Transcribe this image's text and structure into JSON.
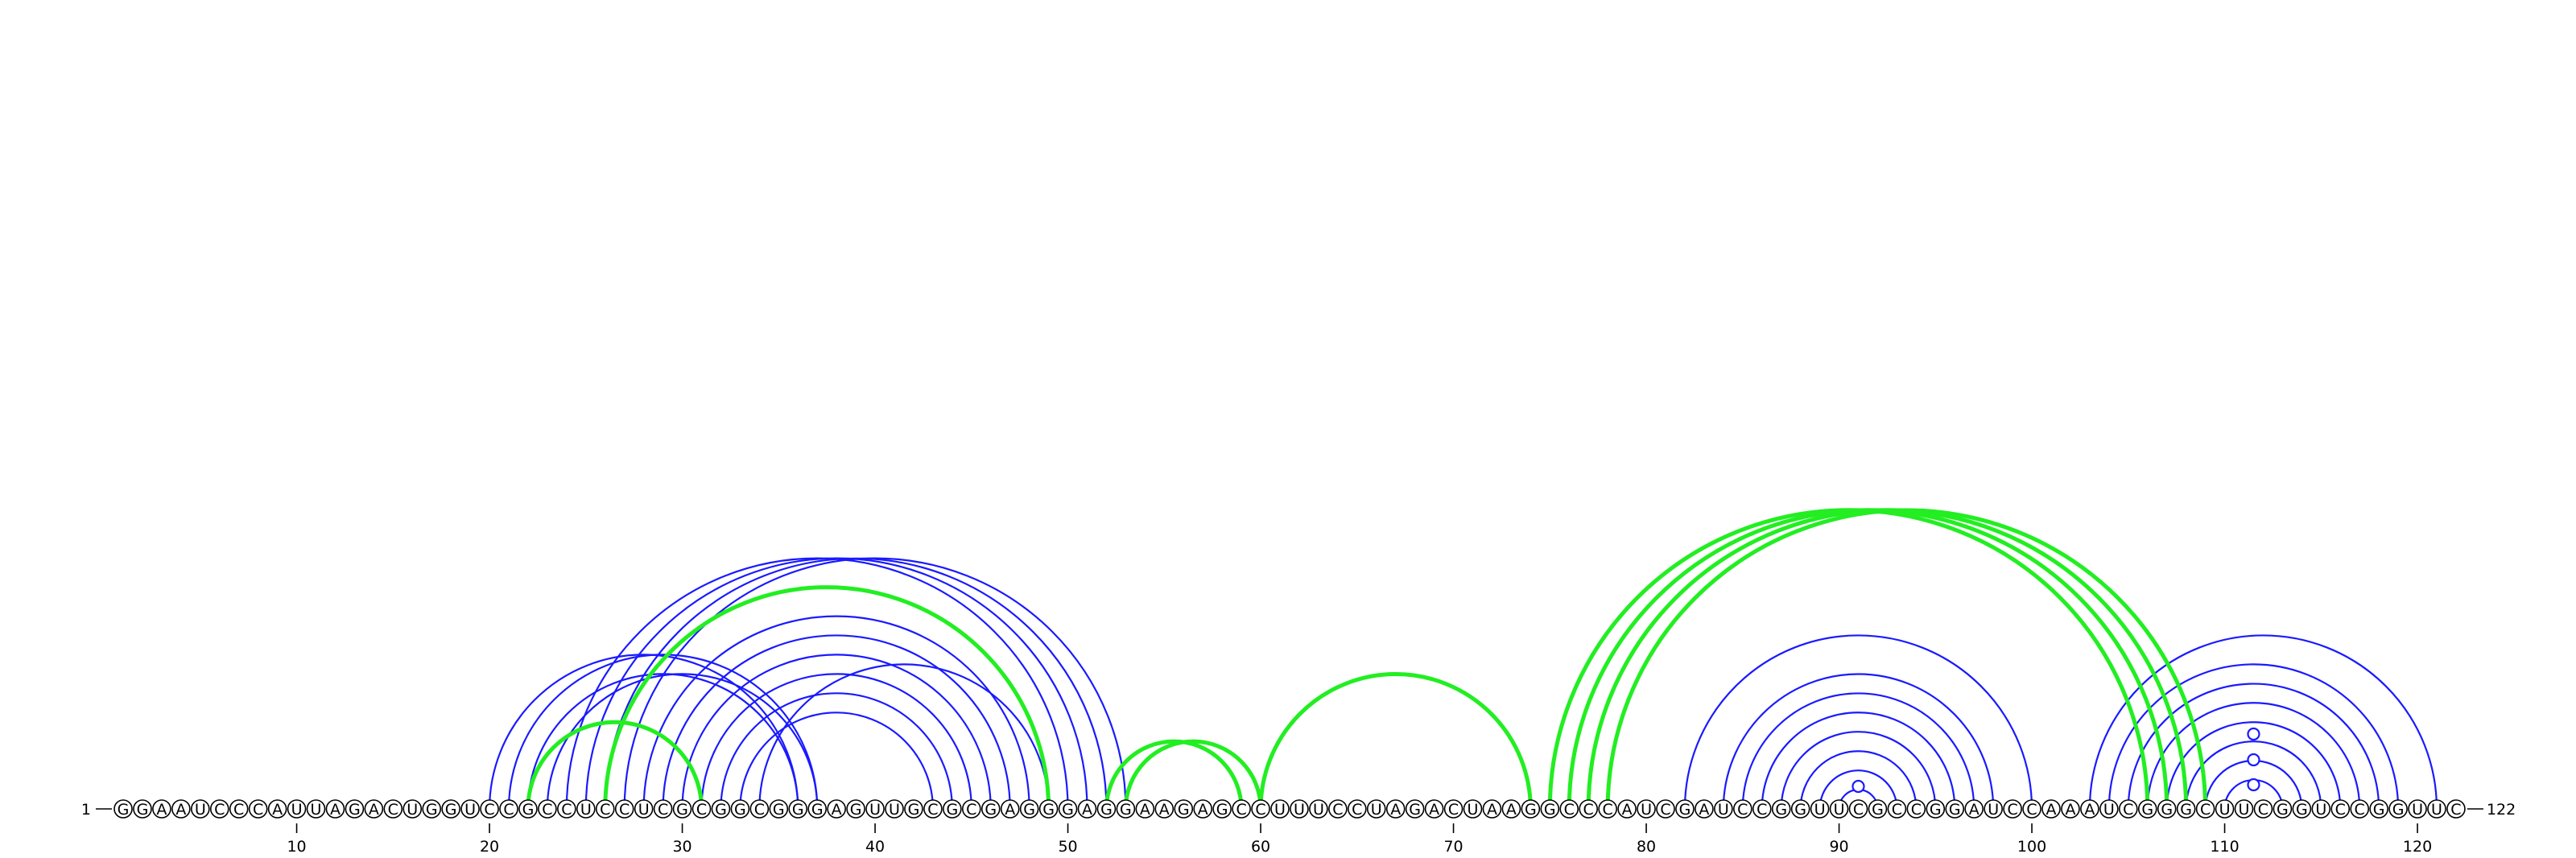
{
  "sequence": "GGAAUCCCAUUAGACUGGUCCGCCUCCUCGCGGCGGGAGUUGCGCGAGGGAGGAAGAGCCUUUCCUAGACUAAGGCCCAUCGAUCCGGUUCGCCGGAUCCAAAUCGGGCUUCGGUCCGGUUC",
  "start_label": "1",
  "end_label": "122",
  "ticks": [
    "10",
    "20",
    "30",
    "40",
    "50",
    "60",
    "70",
    "80",
    "90",
    "100",
    "110",
    "120"
  ],
  "colors": {
    "blue": "#1a1aff",
    "green": "#22ee22"
  },
  "blue_pairs": [
    [
      20,
      36
    ],
    [
      21,
      37
    ],
    [
      22,
      36
    ],
    [
      23,
      37
    ],
    [
      24,
      50
    ],
    [
      25,
      51
    ],
    [
      26,
      52
    ],
    [
      27,
      53
    ],
    [
      28,
      48
    ],
    [
      29,
      47
    ],
    [
      30,
      46
    ],
    [
      31,
      45
    ],
    [
      32,
      44
    ],
    [
      33,
      43
    ],
    [
      34,
      49
    ],
    [
      82,
      100
    ],
    [
      84,
      98
    ],
    [
      85,
      97
    ],
    [
      86,
      96
    ],
    [
      87,
      95
    ],
    [
      88,
      94
    ],
    [
      89,
      93
    ],
    [
      90,
      92
    ],
    [
      103,
      121
    ],
    [
      104,
      119
    ],
    [
      105,
      118
    ],
    [
      106,
      117
    ],
    [
      107,
      116
    ],
    [
      108,
      115
    ],
    [
      109,
      114
    ],
    [
      110,
      113
    ]
  ],
  "green_pairs": [
    [
      22,
      31
    ],
    [
      26,
      49
    ],
    [
      52,
      59
    ],
    [
      53,
      60
    ],
    [
      60,
      74
    ],
    [
      75,
      106
    ],
    [
      76,
      107
    ],
    [
      77,
      108
    ],
    [
      78,
      109
    ]
  ],
  "loop_markers": [
    91,
    111.5,
    111.5,
    111.5
  ]
}
